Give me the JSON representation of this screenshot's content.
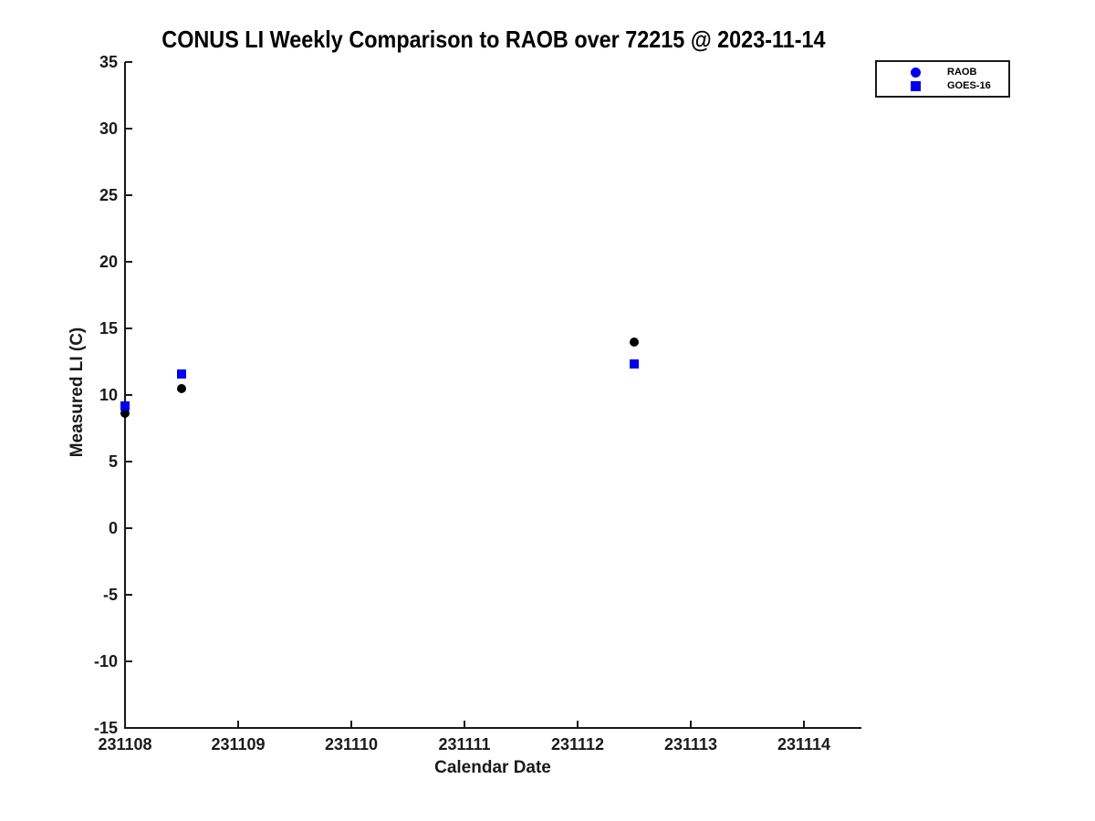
{
  "figure": {
    "background": "#ffffff",
    "axis_color": "#1a1a1a",
    "text_color": "#1a1a1a"
  },
  "chart_data": {
    "type": "scatter",
    "title": "CONUS LI Weekly Comparison to RAOB over 72215 @ 2023-11-14",
    "xlabel": "Calendar Date",
    "ylabel": "Measured LI (C)",
    "xlim": [
      231108,
      231114.5
    ],
    "ylim": [
      -15,
      35
    ],
    "xticks": [
      231108,
      231109,
      231110,
      231111,
      231112,
      231113,
      231114
    ],
    "yticks": [
      -15,
      -10,
      -5,
      0,
      5,
      10,
      15,
      20,
      25,
      30,
      35
    ],
    "grid": false,
    "legend_position": "top-right-outside-plot",
    "series": [
      {
        "name": "RAOB",
        "marker": "circle",
        "color": "#000000",
        "legend_color": "#0000ee",
        "points": [
          [
            231108.0,
            8.6
          ],
          [
            231108.5,
            10.5
          ],
          [
            231112.5,
            14.0
          ]
        ]
      },
      {
        "name": "GOES-16",
        "marker": "square",
        "color": "#0000ee",
        "legend_color": "#0000ee",
        "points": [
          [
            231108.0,
            9.2
          ],
          [
            231108.5,
            11.6
          ],
          [
            231112.5,
            12.3
          ]
        ]
      }
    ]
  }
}
